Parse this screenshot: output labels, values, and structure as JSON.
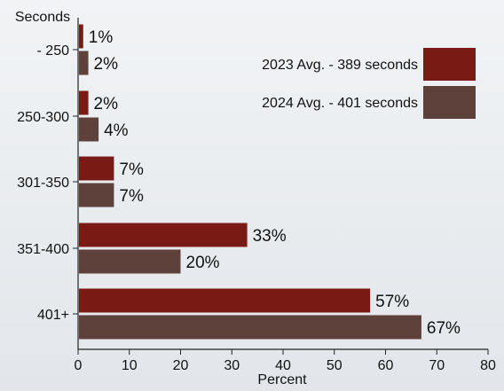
{
  "chart_data": {
    "type": "bar",
    "orientation": "horizontal",
    "ylabel": "Seconds",
    "xlabel": "Percent",
    "categories": [
      "- 250",
      "250-300",
      "301-350",
      "351-400",
      "401+"
    ],
    "series": [
      {
        "name": "2023 Avg. - 389 seconds",
        "color": "#7a1a14",
        "values": [
          1,
          2,
          7,
          33,
          57
        ],
        "labels": [
          "1%",
          "2%",
          "7%",
          "33%",
          "57%"
        ]
      },
      {
        "name": "2024 Avg. - 401 seconds",
        "color": "#5e413a",
        "values": [
          2,
          4,
          7,
          20,
          67
        ],
        "labels": [
          "2%",
          "4%",
          "7%",
          "20%",
          "67%"
        ]
      }
    ],
    "xlim": [
      0,
      80
    ],
    "xticks": [
      "0",
      "10",
      "20",
      "30",
      "40",
      "50",
      "60",
      "70",
      "80"
    ],
    "legend_position": "top-right",
    "grid": false
  }
}
